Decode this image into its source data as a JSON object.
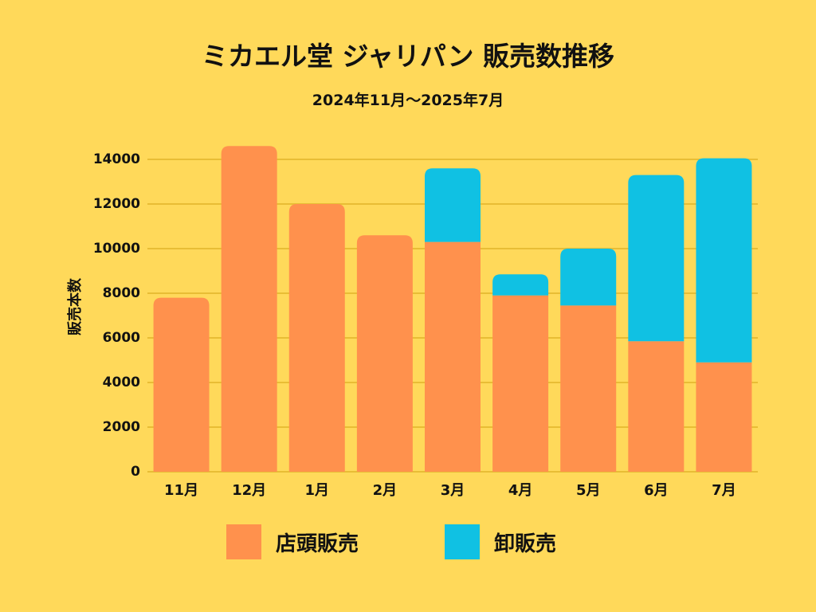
{
  "chart_data": {
    "type": "bar",
    "stacked": true,
    "title": "ミカエル堂 ジャリパン 販売数推移",
    "subtitle": "2024年11月～2025年7月",
    "ylabel": "販売本数",
    "xlabel": "",
    "ylim": [
      0,
      14000
    ],
    "yticks": [
      0,
      2000,
      4000,
      6000,
      8000,
      10000,
      12000,
      14000
    ],
    "grid": true,
    "legend_position": "bottom",
    "categories": [
      "11月",
      "12月",
      "1月",
      "2月",
      "3月",
      "4月",
      "5月",
      "6月",
      "7月"
    ],
    "series": [
      {
        "name": "店頭販売",
        "color": "#FF914D",
        "values": [
          7800,
          14600,
          12000,
          10600,
          10300,
          7900,
          7450,
          5850,
          4900
        ]
      },
      {
        "name": "卸販売",
        "color": "#10C1E3",
        "values": [
          0,
          0,
          0,
          0,
          3300,
          950,
          2550,
          7450,
          9150
        ]
      }
    ]
  },
  "colors": {
    "background": "#FFD95A",
    "grid": "#E8BD35",
    "axis": "#111111"
  }
}
